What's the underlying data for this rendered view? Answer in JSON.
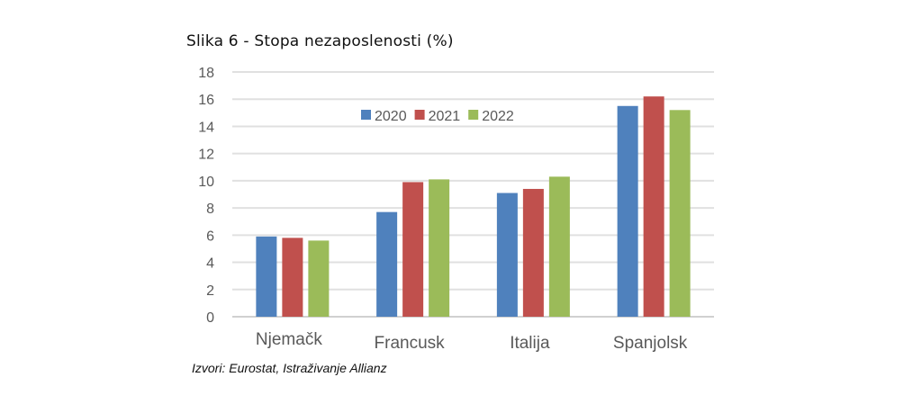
{
  "chart_data": {
    "type": "bar",
    "title": "Slika 6 - Stopa nezaposlenosti (%)",
    "categories": [
      "Njemačk",
      "Francusk",
      "Italija",
      "Spanjolsk"
    ],
    "series": [
      {
        "name": "2020",
        "color": "#4f81bd",
        "values": [
          5.9,
          7.7,
          9.1,
          15.5
        ]
      },
      {
        "name": "2021",
        "color": "#c0504d",
        "values": [
          5.8,
          9.9,
          9.4,
          16.2
        ]
      },
      {
        "name": "2022",
        "color": "#9bbb59",
        "values": [
          5.6,
          10.1,
          10.3,
          15.2
        ]
      }
    ],
    "xlabel": "",
    "ylabel": "",
    "ylim": [
      0,
      18
    ],
    "yticks": [
      0,
      2,
      4,
      6,
      8,
      10,
      12,
      14,
      16,
      18
    ],
    "grid": true,
    "legend": "top-center",
    "source": "Izvori: Eurostat, Istraživanje Allianz"
  }
}
